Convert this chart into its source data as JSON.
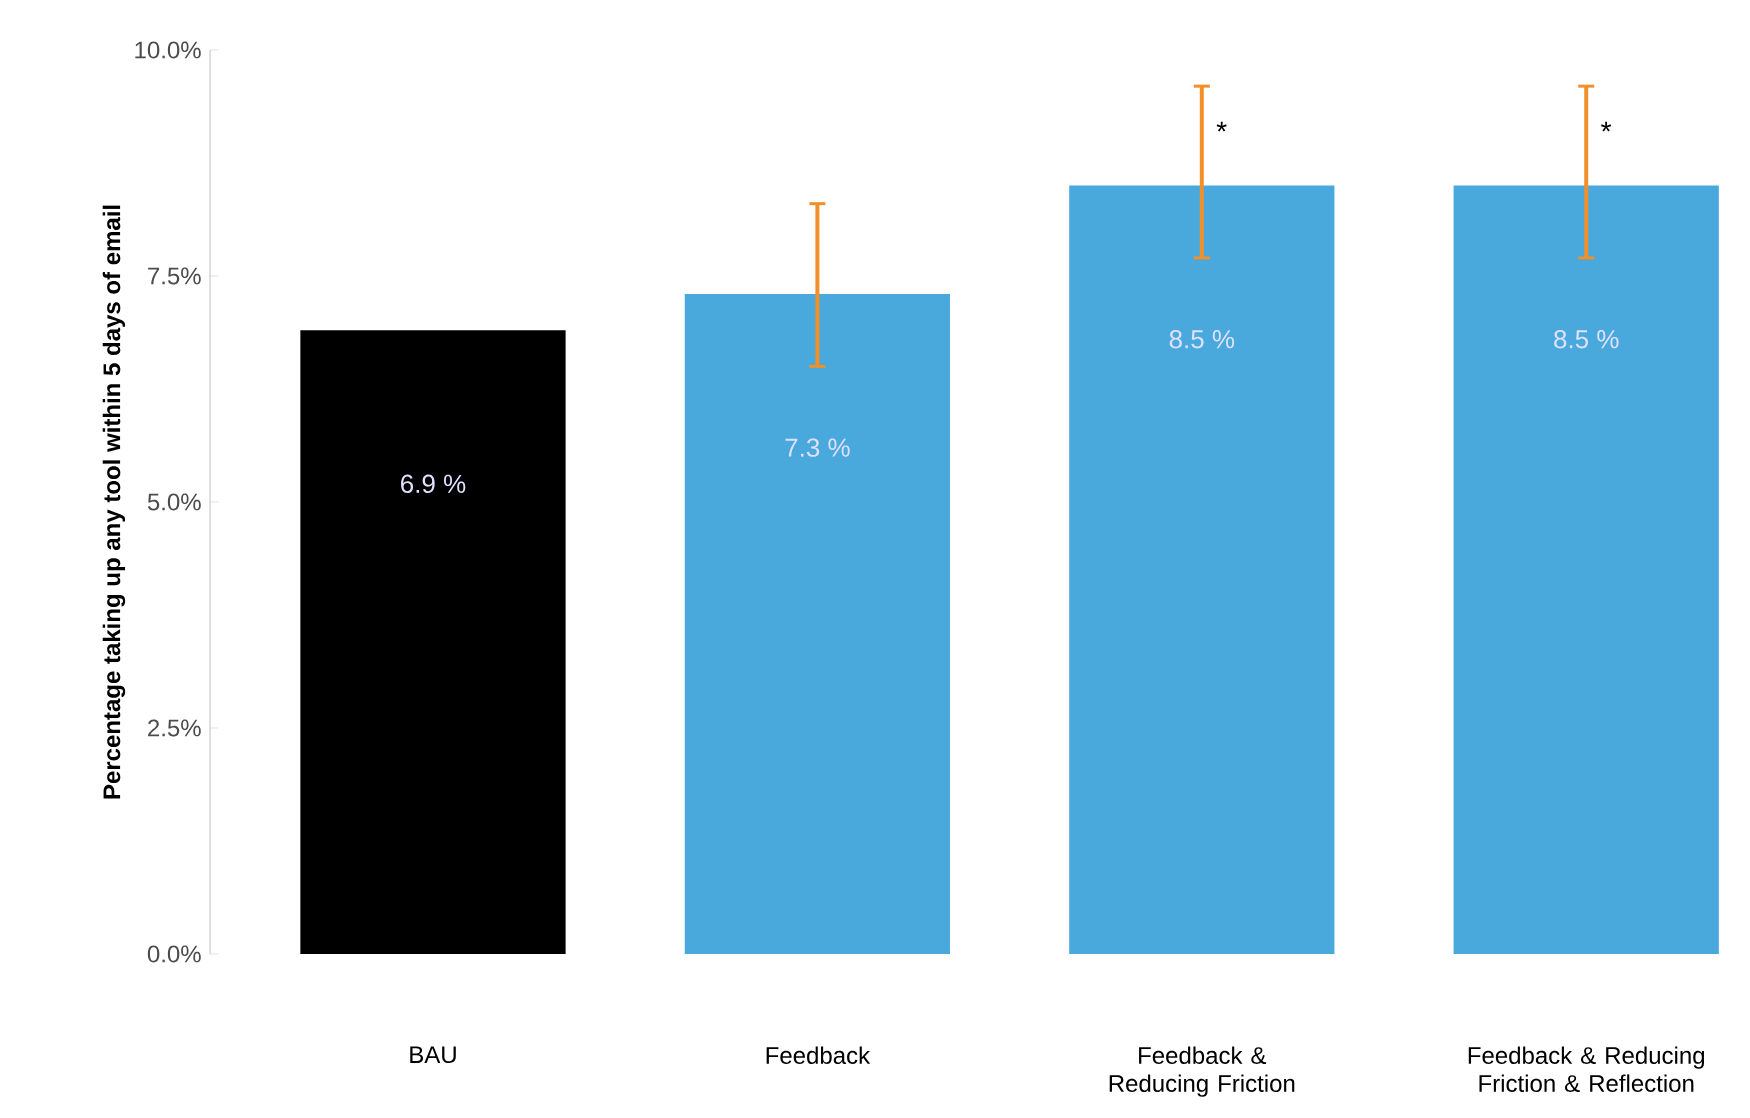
{
  "chart_data": {
    "type": "bar",
    "ylabel": "**Percentage taking up any tool within 5 days of email**",
    "categories": [
      "BAU",
      "Feedback",
      "Feedback & Reducing Friction",
      "Feedback & Reducing Friction & Reflection"
    ],
    "values": [
      6.9,
      7.3,
      8.5,
      8.5
    ],
    "colors": [
      "#000000",
      "#4aa9dc",
      "#4aa9dc",
      "#4aa9dc"
    ],
    "value_labels": [
      "6.9 %",
      "7.3 %",
      "8.5 %",
      "8.5 %"
    ],
    "errors": [
      null,
      [
        6.5,
        8.3
      ],
      [
        7.7,
        9.6
      ],
      [
        7.7,
        9.6
      ]
    ],
    "annotations": [
      {
        "text": "*",
        "x": "Feedback & Reducing Friction",
        "y": 9.1
      },
      {
        "text": "*",
        "x": "Feedback & Reducing Friction & Reflection",
        "y": 9.1
      }
    ],
    "ylim": [
      0,
      10
    ],
    "yticks": [
      {
        "value": 0,
        "label": "0.0%"
      },
      {
        "value": 2.5,
        "label": "2.5%"
      },
      {
        "value": 5,
        "label": "5.0%"
      },
      {
        "value": 7.5,
        "label": "7.5%"
      },
      {
        "value": 10,
        "label": "10.0%"
      }
    ],
    "grid": false
  }
}
